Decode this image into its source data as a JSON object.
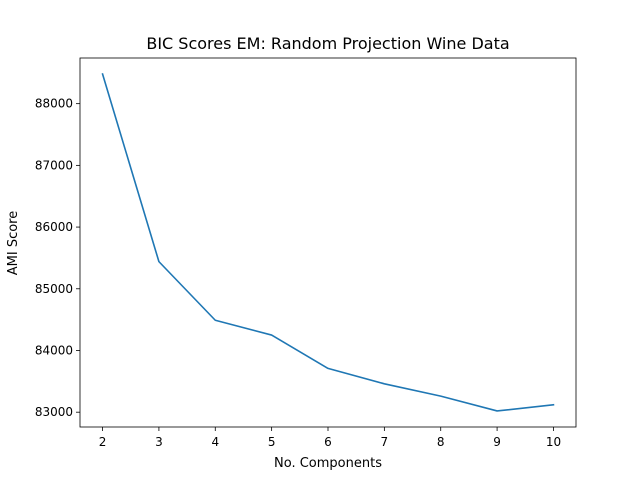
{
  "chart_data": {
    "type": "line",
    "title": "BIC Scores EM: Random Projection Wine Data",
    "xlabel": "No. Components",
    "ylabel": "AMI Score",
    "x": [
      2,
      3,
      4,
      5,
      6,
      7,
      8,
      9,
      10
    ],
    "series": [
      {
        "values": [
          88480,
          85440,
          84490,
          84250,
          83710,
          83460,
          83260,
          83020,
          83120
        ],
        "color": "#1f77b4"
      }
    ],
    "xlim": [
      1.6,
      10.4
    ],
    "ylim": [
      82760,
      88740
    ],
    "xticks": [
      2,
      3,
      4,
      5,
      6,
      7,
      8,
      9,
      10
    ],
    "yticks": [
      83000,
      84000,
      85000,
      86000,
      87000,
      88000
    ],
    "grid": false,
    "legend": "none"
  }
}
